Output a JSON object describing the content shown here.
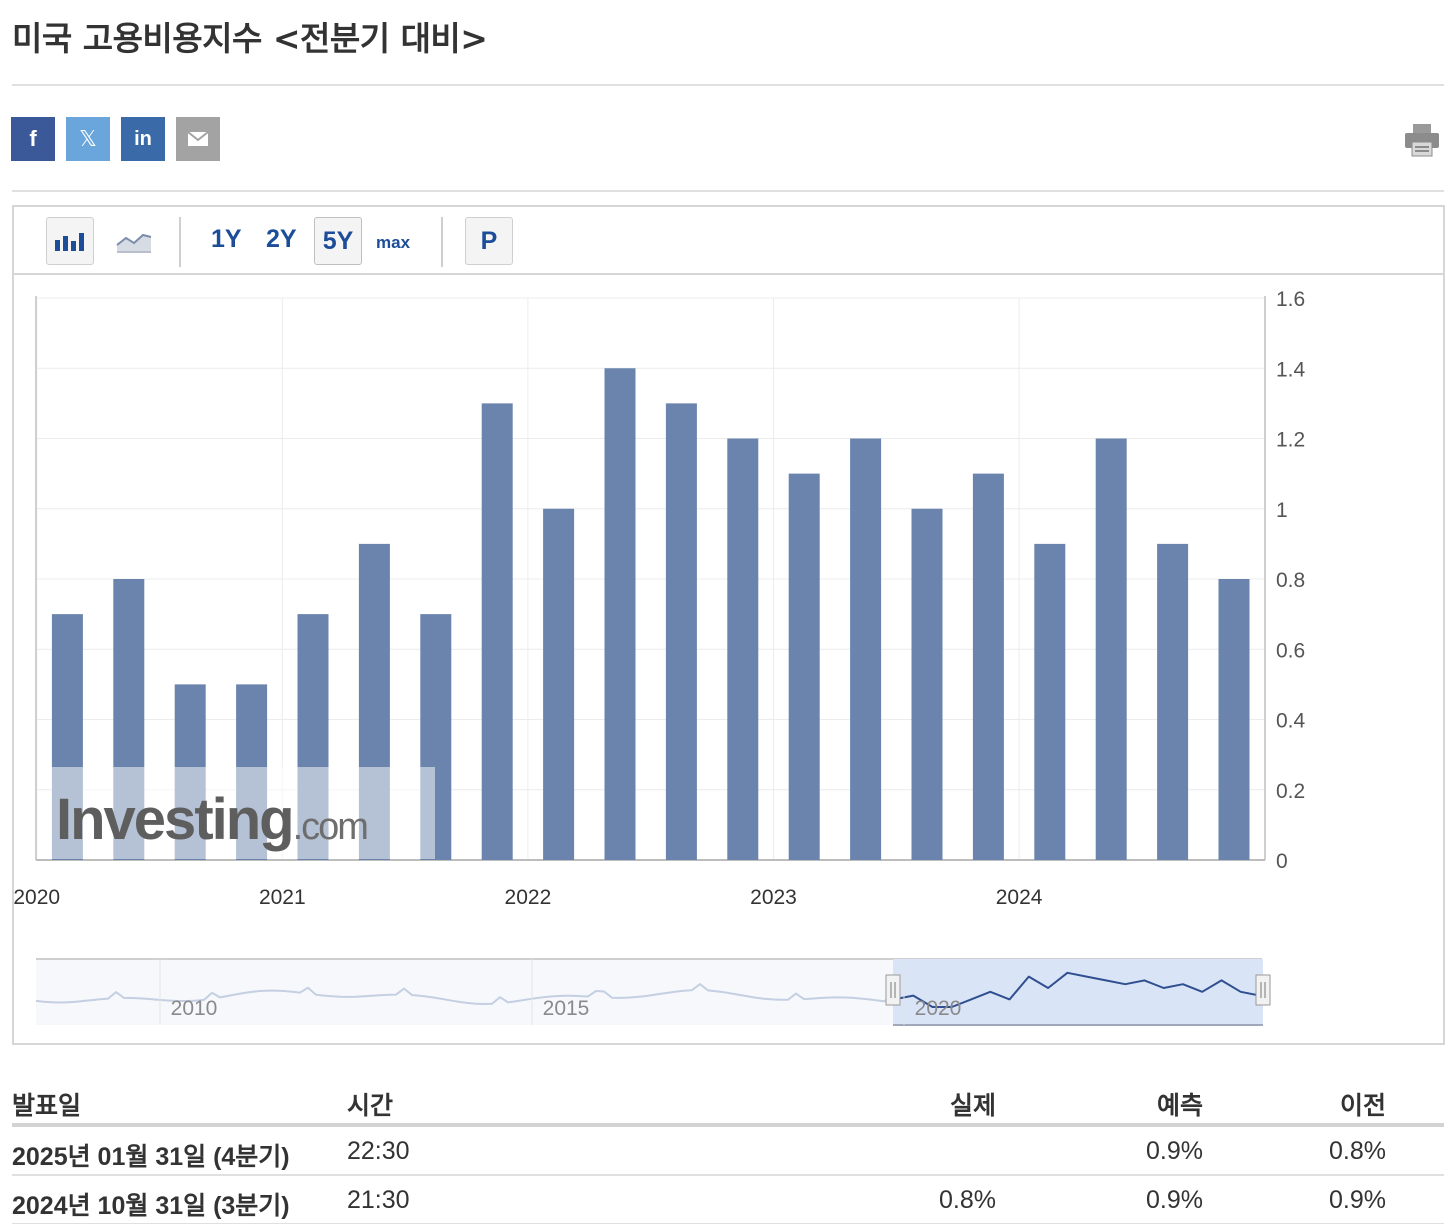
{
  "page": {
    "title": "미국 고용비용지수 <전분기 대비>"
  },
  "share": {
    "facebook": "f",
    "twitter": "𝕏",
    "linkedin": "in",
    "icons": [
      "facebook-icon",
      "twitter-x-icon",
      "linkedin-icon",
      "email-icon",
      "print-icon"
    ]
  },
  "toolbar": {
    "periods": [
      "1Y",
      "2Y",
      "5Y",
      "max"
    ],
    "active_period": "5Y",
    "p_label": "P"
  },
  "chart_data": {
    "type": "bar",
    "series": [
      {
        "values": [
          0.7,
          0.8,
          0.5,
          0.5,
          0.7,
          0.9,
          0.7,
          1.3,
          1.0,
          1.4,
          1.3,
          1.2,
          1.1,
          1.2,
          1.0,
          1.1,
          0.9,
          1.2,
          0.9,
          0.8
        ]
      }
    ],
    "x_tick_labels": [
      "2020",
      "2021",
      "2022",
      "2023",
      "2024"
    ],
    "y_ticks": [
      "0",
      "0.2",
      "0.4",
      "0.6",
      "0.8",
      "1",
      "1.2",
      "1.4",
      "1.6"
    ],
    "ylim": [
      0,
      1.6
    ],
    "y_axis_side": "right",
    "bar_color": "#6a84ad",
    "grid": true,
    "watermark": "Investing.com",
    "navigator": {
      "labels": [
        "2010",
        "2015",
        "2020"
      ]
    }
  },
  "table": {
    "headers": {
      "date": "발표일",
      "time": "시간",
      "actual": "실제",
      "forecast": "예측",
      "previous": "이전"
    },
    "rows": [
      {
        "date": "2025년 01월 31일 (4분기)",
        "time": "22:30",
        "actual": "",
        "forecast": "0.9%",
        "previous": "0.8%"
      },
      {
        "date": "2024년 10월 31일 (3분기)",
        "time": "21:30",
        "actual": "0.8%",
        "forecast": "0.9%",
        "previous": "0.9%"
      }
    ]
  }
}
